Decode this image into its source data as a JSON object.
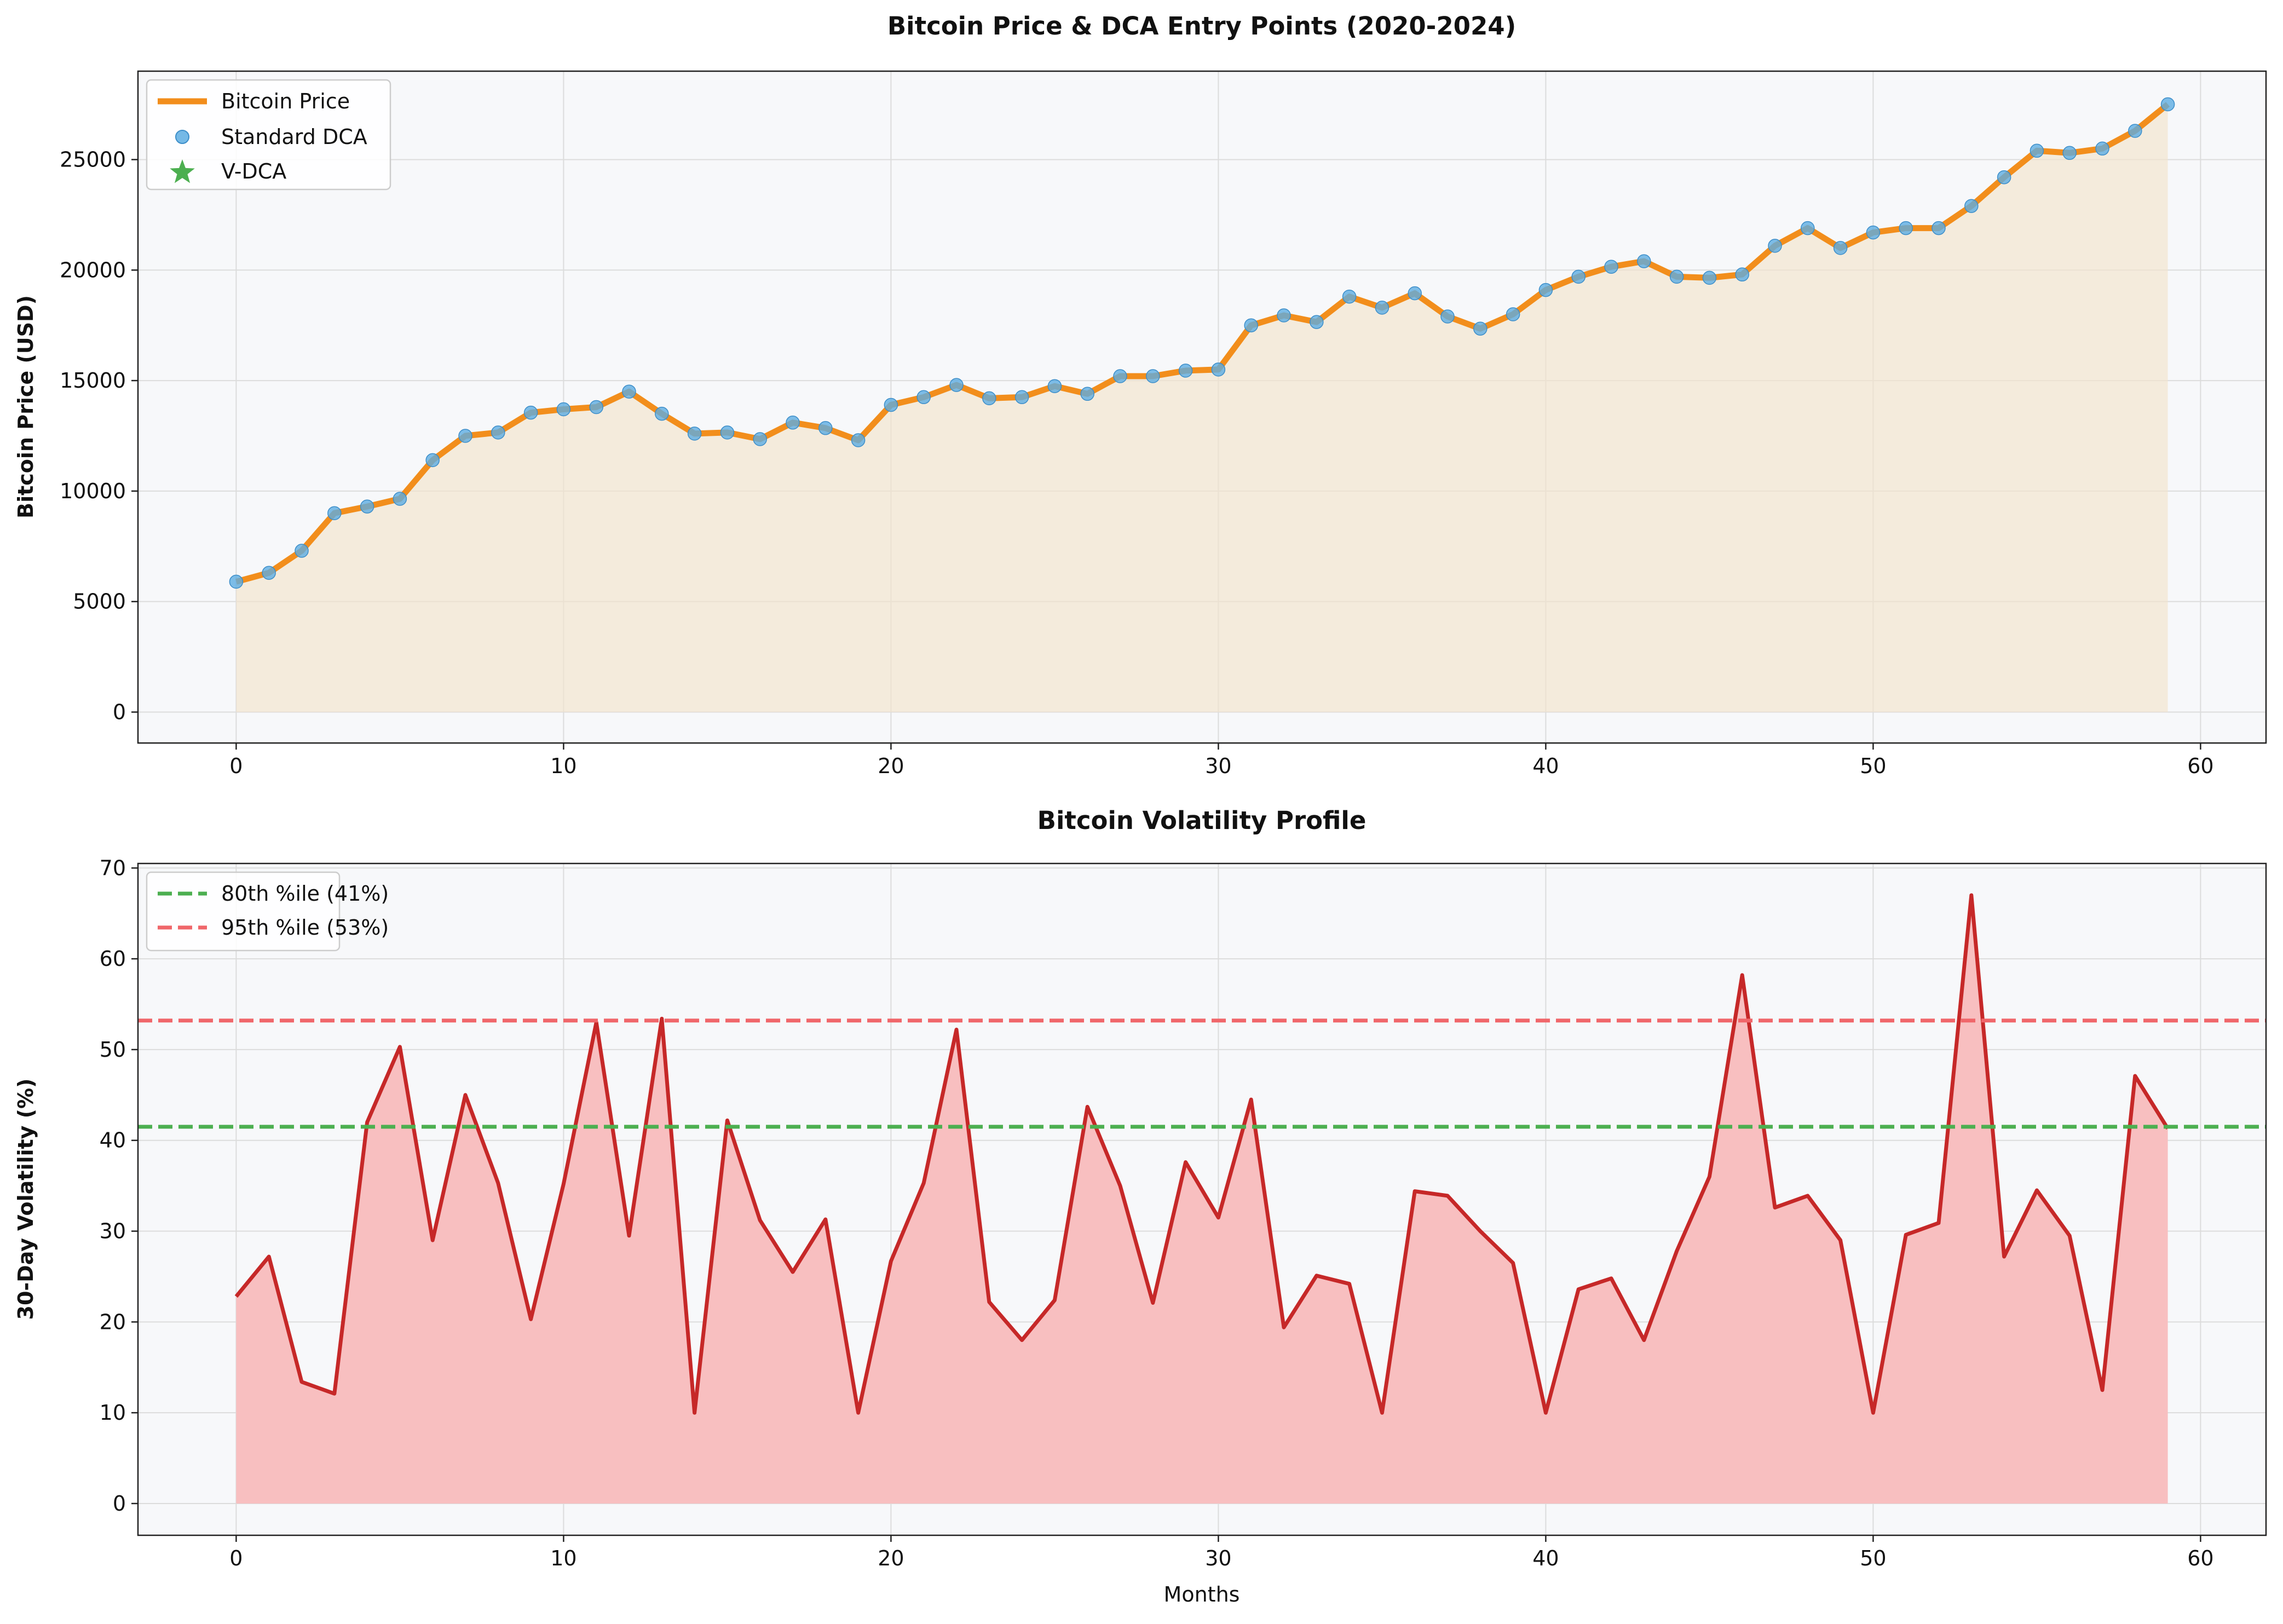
{
  "chart_data": [
    {
      "type": "line",
      "title": "Bitcoin Price & DCA Entry Points (2020-2024)",
      "xlabel": "",
      "ylabel": "Bitcoin Price (USD)",
      "xlim": [
        -3,
        62
      ],
      "ylim": [
        -1400,
        29000
      ],
      "xticks": [
        0,
        10,
        20,
        30,
        40,
        50,
        60
      ],
      "yticks": [
        0,
        5000,
        10000,
        15000,
        20000,
        25000
      ],
      "grid": true,
      "legend_position": "top-left",
      "x": [
        0,
        1,
        2,
        3,
        4,
        5,
        6,
        7,
        8,
        9,
        10,
        11,
        12,
        13,
        14,
        15,
        16,
        17,
        18,
        19,
        20,
        21,
        22,
        23,
        24,
        25,
        26,
        27,
        28,
        29,
        30,
        31,
        32,
        33,
        34,
        35,
        36,
        37,
        38,
        39,
        40,
        41,
        42,
        43,
        44,
        45,
        46,
        47,
        48,
        49,
        50,
        51,
        52,
        53,
        54,
        55,
        56,
        57,
        58,
        59
      ],
      "series": [
        {
          "name": "Bitcoin Price",
          "kind": "line",
          "color": "#f28e1c",
          "values": [
            5900,
            6300,
            7300,
            9000,
            9300,
            9650,
            11400,
            12500,
            12650,
            13550,
            13700,
            13800,
            14500,
            13500,
            12600,
            12650,
            12350,
            13100,
            12850,
            12300,
            13900,
            14250,
            14800,
            14200,
            14250,
            14750,
            14400,
            15200,
            15200,
            15450,
            15500,
            17500,
            17950,
            17650,
            18800,
            18300,
            18950,
            17900,
            17350,
            18000,
            19100,
            19700,
            20150,
            20400,
            19700,
            19650,
            19800,
            21100,
            21900,
            21000,
            21700,
            21900,
            21900,
            22900,
            24200,
            25400,
            25300,
            25500,
            26300,
            27500
          ]
        },
        {
          "name": "Standard DCA",
          "kind": "scatter",
          "color": "#5dade2"
        },
        {
          "name": "V-DCA",
          "kind": "scatter-star",
          "color": "#4caf50"
        }
      ]
    },
    {
      "type": "line",
      "title": "Bitcoin Volatility Profile",
      "xlabel": "Months",
      "ylabel": "30-Day Volatility (%)",
      "xlim": [
        -3,
        62
      ],
      "ylim": [
        -3.5,
        70.5
      ],
      "xticks": [
        0,
        10,
        20,
        30,
        40,
        50,
        60
      ],
      "yticks": [
        0,
        10,
        20,
        30,
        40,
        50,
        60,
        70
      ],
      "grid": true,
      "legend_position": "top-left",
      "x": [
        0,
        1,
        2,
        3,
        4,
        5,
        6,
        7,
        8,
        9,
        10,
        11,
        12,
        13,
        14,
        15,
        16,
        17,
        18,
        19,
        20,
        21,
        22,
        23,
        24,
        25,
        26,
        27,
        28,
        29,
        30,
        31,
        32,
        33,
        34,
        35,
        36,
        37,
        38,
        39,
        40,
        41,
        42,
        43,
        44,
        45,
        46,
        47,
        48,
        49,
        50,
        51,
        52,
        53,
        54,
        55,
        56,
        57,
        58,
        59
      ],
      "series": [
        {
          "name": "",
          "kind": "line",
          "color": "#c62828",
          "fill_color": "#f8bfc0",
          "values": [
            22.8,
            27.2,
            13.4,
            12.1,
            42.0,
            50.3,
            29.0,
            45.0,
            35.3,
            20.3,
            35.2,
            53.0,
            29.5,
            53.4,
            10.0,
            42.2,
            31.2,
            25.5,
            31.3,
            10.0,
            26.7,
            35.3,
            52.2,
            22.2,
            18.0,
            22.4,
            43.7,
            35.0,
            22.1,
            37.6,
            31.5,
            44.5,
            19.4,
            25.1,
            24.2,
            10.0,
            34.4,
            33.9,
            30.0,
            26.5,
            10.0,
            23.6,
            24.8,
            18.0,
            27.8,
            36.0,
            58.2,
            32.6,
            33.9,
            29.0,
            10.0,
            29.6,
            30.9,
            67.0,
            27.2,
            34.5,
            29.5,
            12.5,
            47.1,
            41.3
          ]
        },
        {
          "name": "80th %ile (41%)",
          "kind": "hline",
          "color": "#4caf50",
          "value": 41.5
        },
        {
          "name": "95th %ile (53%)",
          "kind": "hline",
          "color": "#f0666a",
          "value": 53.2
        }
      ]
    }
  ]
}
